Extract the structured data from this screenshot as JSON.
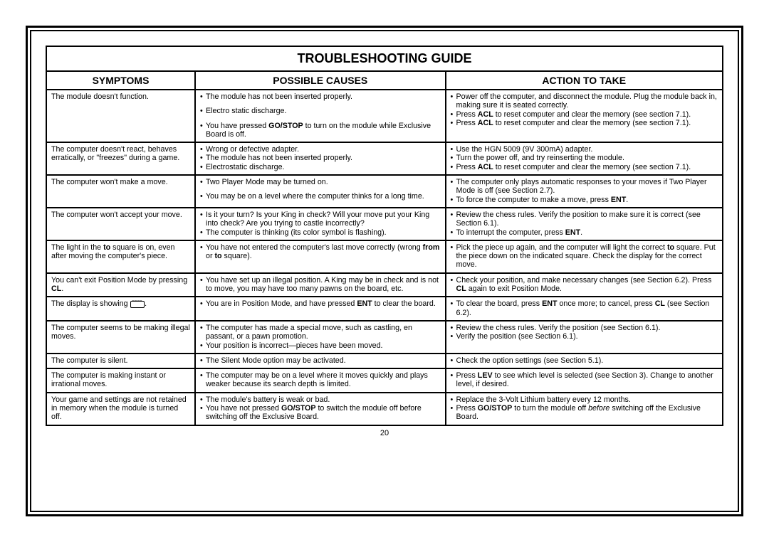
{
  "frame": {
    "border_color": "#000000"
  },
  "title": "TROUBLESHOOTING GUIDE",
  "columns": {
    "symptoms": "SYMPTOMS",
    "causes": "POSSIBLE CAUSES",
    "action": "ACTION TO TAKE"
  },
  "rows": [
    {
      "symptom": "The module doesn't function.",
      "causes": [
        "The module has not been inserted properly.",
        "Electro static discharge.",
        "You have pressed <b>GO/STOP</b> to turn on the module while Exclusive Board is off."
      ],
      "actions": [
        "Power off the computer, and disconnect the module. Plug the module back in, making sure it is seated correctly.",
        "Press <b>ACL</b> to reset computer and clear the memory (see section 7.1).",
        "Press <b>ACL</b> to reset computer and clear the memory (see section 7.1)."
      ]
    },
    {
      "symptom": "The computer doesn't react, behaves erratically, or \"freezes\" during a game.",
      "causes": [
        "Wrong or defective adapter.",
        "The module has not been inserted properly.",
        "Electrostatic discharge."
      ],
      "actions": [
        "Use the HGN 5009 (9V 300mA) adapter.",
        "Turn the power off, and try reinserting the module.",
        "Press <b>ACL</b> to reset computer and clear the memory (see section 7.1)."
      ]
    },
    {
      "symptom": "The computer won't make a move.",
      "causes": [
        "Two Player Mode may be turned on.",
        "You may be on a level where the computer thinks for a long time."
      ],
      "actions": [
        "The computer only plays automatic responses to your moves if Two Player Mode is off (see Section 2.7).",
        "To force the computer to make a move, press <b>ENT</b>."
      ]
    },
    {
      "symptom": "The computer won't accept your move.",
      "causes": [
        "Is it your turn? Is your King in check? Will your move put your King into check? Are you trying to castle incorrectly?",
        "The computer is thinking (its color symbol is flashing)."
      ],
      "actions": [
        "Review the chess rules. Verify the position to make sure it is correct (see Section 6.1).",
        "To interrupt the computer, press <b>ENT</b>."
      ]
    },
    {
      "symptom": "The light in the <b>to</b> square is on, even after moving the computer's piece.",
      "causes": [
        "You have not entered the computer's last move correctly (wrong <b>from</b> or <b>to</b> square)."
      ],
      "actions": [
        "Pick the piece up again, and the computer will light the correct <b>to</b> square. Put the piece down on the indicated square. Check the display for the correct move."
      ]
    },
    {
      "symptom": "You can't exit Position Mode by pressing <b>CL</b>.",
      "causes": [
        "You have set up an illegal position. A King may be in check and is not to move, you may have too many pawns on the board, etc."
      ],
      "actions": [
        "Check your position, and make necessary changes (see Section 6.2). Press <b>CL</b> again to exit Position Mode."
      ]
    },
    {
      "symptom": "The display is showing <span class=\"lcd\"><span class=\"lcd-inner\">‾‾‾‾</span></span>.",
      "causes": [
        "You are in Position Mode, and have pressed <b>ENT</b> to clear the board."
      ],
      "actions": [
        "To clear the board, press <b>ENT</b> once more; to cancel, press <b>CL</b> (see Section 6.2)."
      ]
    },
    {
      "symptom": "The computer seems to be making illegal moves.",
      "causes": [
        "The computer has made a special move, such as castling, en passant, or a pawn promotion.",
        "Your position is incorrect—pieces have been moved."
      ],
      "actions": [
        "Review the chess rules. Verify the position (see Section 6.1).",
        "Verify the position (see Section 6.1)."
      ]
    },
    {
      "symptom": "The computer is silent.",
      "causes": [
        "The Silent Mode option may be activated."
      ],
      "actions": [
        "Check the option settings (see Section 5.1)."
      ]
    },
    {
      "symptom": "The computer is making instant or irrational moves.",
      "causes": [
        "The computer may be on a level where it moves quickly and plays weaker because its search depth is limited."
      ],
      "actions": [
        "Press <b>LEV</b> to see which level is selected (see Section 3). Change to another level, if desired."
      ]
    },
    {
      "symptom": "Your game and settings are not retained in memory when the module is turned off.",
      "causes": [
        "The module's battery is weak or bad.",
        "You have not pressed <b>GO/STOP</b> to switch the module off before switching off the Exclusive Board."
      ],
      "actions": [
        "Replace the 3-Volt Lithium battery every 12 months.",
        "Press <b>GO/STOP</b> to turn the module off <i>before</i> switching off the Exclusive Board."
      ]
    }
  ],
  "page_number": "20"
}
